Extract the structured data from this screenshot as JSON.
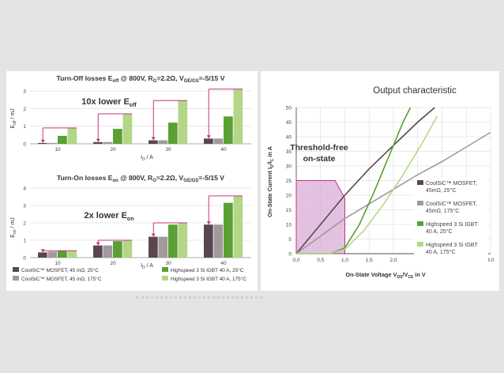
{
  "colors": {
    "mos25": "#5a4650",
    "mos175": "#a09a9c",
    "igbt25": "#5aa034",
    "igbt175": "#b3d786",
    "arrow": "#c4347c",
    "shade": "#d8aed6",
    "grid": "#d6d6d6"
  },
  "left_panel": {
    "turnoff": {
      "title_pre": "Turn-Off losses E",
      "title_sub": "off",
      "title_post": " @ 800V, R",
      "title_g": "G",
      "title_post2": "=2.2Ω, V",
      "title_vsub": "GE/GS",
      "title_post3": "=-5/15 V",
      "ylabel_main": "E",
      "ylabel_sub": "off",
      "ylabel_unit": " / mJ",
      "xlabel_main": "I",
      "xlabel_sub": "D",
      "xlabel_unit": " / A",
      "annotation_main": "10x lower E",
      "annotation_sub": "off"
    },
    "turnon": {
      "title_pre": "Turn-On losses E",
      "title_sub": "on",
      "title_post": " @ 800V, R",
      "title_g": "G",
      "title_post2": "=2.2Ω, V",
      "title_vsub": "GE/GS",
      "title_post3": "=-5/15 V",
      "ylabel_main": "E",
      "ylabel_sub": "on",
      "ylabel_unit": " / mJ",
      "xlabel_main": "I",
      "xlabel_sub": "D",
      "xlabel_unit": " / A",
      "annotation_main": "2x lower E",
      "annotation_sub": "on"
    },
    "legend": [
      {
        "label": "CoolSiC™ MOSFET, 45 mΩ, 25°C",
        "color": "#5a4650"
      },
      {
        "label": "CoolSiC™ MOSFET, 45 mΩ, 175°C",
        "color": "#a09a9c"
      },
      {
        "label": "Highspeed 3 Si IGBT 40 A, 25°C",
        "color": "#5aa034"
      },
      {
        "label": "Highspeed 3 Si IGBT 40 A, 175°C",
        "color": "#b3d786"
      }
    ]
  },
  "right_panel": {
    "title": "Output characteristic",
    "annotation_line1": "Threshold-free",
    "annotation_line2": "on-state",
    "ylabel_pre": "On-State Current I",
    "ylabel_sub1": "D",
    "ylabel_mid": "/I",
    "ylabel_sub2": "C",
    "ylabel_post": " in A",
    "xlabel_pre": "On-State Voltage V",
    "xlabel_sub1": "DS",
    "xlabel_mid": "/V",
    "xlabel_sub2": "CE",
    "xlabel_post": " in V",
    "legend": [
      {
        "line1": "CoolSiC™ MOSFET,",
        "line2": "45mΩ, 25°C",
        "color": "#5a4650"
      },
      {
        "line1": "CoolSiC™ MOSFET,",
        "line2": "45mΩ, 175°C",
        "color": "#a09a9c"
      },
      {
        "line1": "Highspeed 3 Si IGBT",
        "line2": "40 A, 25°C",
        "color": "#5aa034"
      },
      {
        "line1": "Highspeed 3 Si IGBT",
        "line2": "40 A, 175°C",
        "color": "#b3d786"
      }
    ]
  },
  "chart_data": [
    {
      "type": "bar",
      "title": "Turn-Off losses Eoff @ 800V, RG=2.2Ω, VGE/GS=-5/15 V",
      "xlabel": "ID / A",
      "ylabel": "Eoff / mJ",
      "ylim": [
        0,
        3
      ],
      "yticks": [
        0,
        1,
        2,
        3
      ],
      "categories": [
        "10",
        "20",
        "30",
        "40"
      ],
      "grid": true,
      "series": [
        {
          "name": "CoolSiC™ MOSFET, 45 mΩ, 25°C",
          "values": [
            0.05,
            0.1,
            0.2,
            0.3
          ]
        },
        {
          "name": "CoolSiC™ MOSFET, 45 mΩ, 175°C",
          "values": [
            0.05,
            0.1,
            0.2,
            0.3
          ]
        },
        {
          "name": "Highspeed 3 Si IGBT 40 A, 25°C",
          "values": [
            0.45,
            0.85,
            1.2,
            1.55
          ]
        },
        {
          "name": "Highspeed 3 Si IGBT 40 A, 175°C",
          "values": [
            0.9,
            1.7,
            2.45,
            3.1
          ]
        }
      ],
      "annotation": "10x lower Eoff"
    },
    {
      "type": "bar",
      "title": "Turn-On losses Eon @ 800V, RG=2.2Ω, VGE/GS=-5/15 V",
      "xlabel": "ID / A",
      "ylabel": "Eon / mJ",
      "ylim": [
        0,
        4
      ],
      "yticks": [
        0,
        1,
        2,
        3,
        4
      ],
      "categories": [
        "10",
        "20",
        "30",
        "40"
      ],
      "grid": true,
      "series": [
        {
          "name": "CoolSiC™ MOSFET, 45 mΩ, 25°C",
          "values": [
            0.3,
            0.7,
            1.2,
            1.9
          ]
        },
        {
          "name": "CoolSiC™ MOSFET, 45 mΩ, 175°C",
          "values": [
            0.35,
            0.7,
            1.2,
            1.9
          ]
        },
        {
          "name": "Highspeed 3 Si IGBT 40 A, 25°C",
          "values": [
            0.4,
            0.95,
            1.9,
            3.15
          ]
        },
        {
          "name": "Highspeed 3 Si IGBT 40 A, 175°C",
          "values": [
            0.4,
            1.0,
            2.0,
            3.55
          ]
        }
      ],
      "annotation": "2x lower Eon"
    },
    {
      "type": "line",
      "title": "Output characteristic",
      "xlabel": "On-State Voltage VDS/VCE in V",
      "ylabel": "On-State Current ID/IC in A",
      "xlim": [
        0,
        4.0
      ],
      "ylim": [
        0,
        50
      ],
      "xticks": [
        "0,0",
        "0,5",
        "1,0",
        "1,5",
        "2,0",
        "2,5",
        "3,0",
        "3,5",
        "4,0"
      ],
      "yticks": [
        0,
        5,
        10,
        15,
        20,
        25,
        30,
        35,
        40,
        45,
        50
      ],
      "grid": true,
      "legend": "right",
      "series": [
        {
          "name": "CoolSiC™ MOSFET, 45mΩ, 25°C",
          "x": [
            0,
            0.5,
            1.0,
            1.5,
            2.0,
            2.5,
            2.85
          ],
          "y": [
            0,
            10,
            20,
            29,
            37,
            45,
            50
          ]
        },
        {
          "name": "CoolSiC™ MOSFET, 45mΩ, 175°C",
          "x": [
            0,
            0.5,
            1.0,
            1.5,
            2.0,
            2.5,
            3.0,
            3.5,
            4.0
          ],
          "y": [
            0,
            6,
            12,
            17,
            22,
            27,
            31.5,
            36.5,
            41.5
          ]
        },
        {
          "name": "Highspeed 3 Si IGBT 40 A, 25°C",
          "x": [
            0,
            0.7,
            1.0,
            1.3,
            1.6,
            1.9,
            2.2,
            2.35
          ],
          "y": [
            0,
            0,
            2,
            10,
            21,
            33,
            45,
            50
          ]
        },
        {
          "name": "Highspeed 3 Si IGBT 40 A, 175°C",
          "x": [
            0,
            0.7,
            1.0,
            1.4,
            1.8,
            2.2,
            2.6,
            2.9
          ],
          "y": [
            0,
            0,
            1.5,
            8,
            17,
            27,
            38,
            47
          ]
        }
      ],
      "annotation": "Threshold-free on-state"
    }
  ]
}
